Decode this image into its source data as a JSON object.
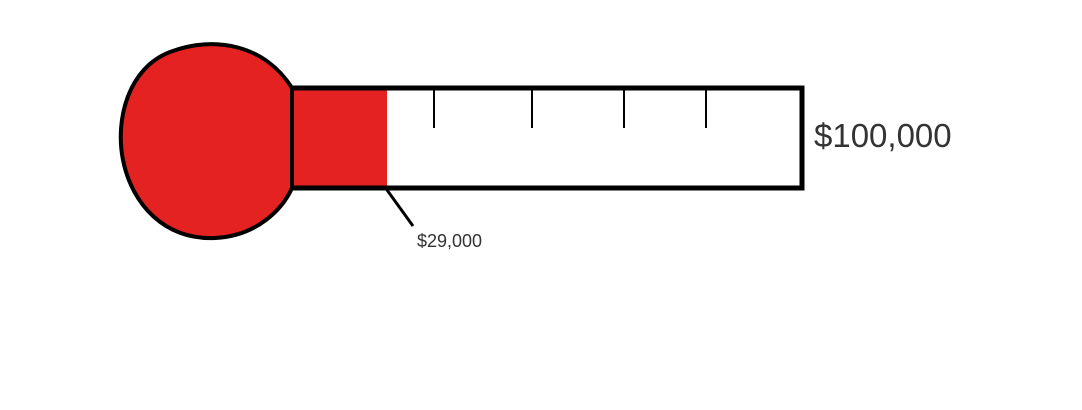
{
  "chart_data": {
    "type": "thermometer",
    "current": 29000,
    "goal": 100000,
    "current_label": "$29,000",
    "goal_label": "$100,000",
    "fill_color": "#e52222",
    "outline_color": "#000000",
    "tick_count": 4
  }
}
